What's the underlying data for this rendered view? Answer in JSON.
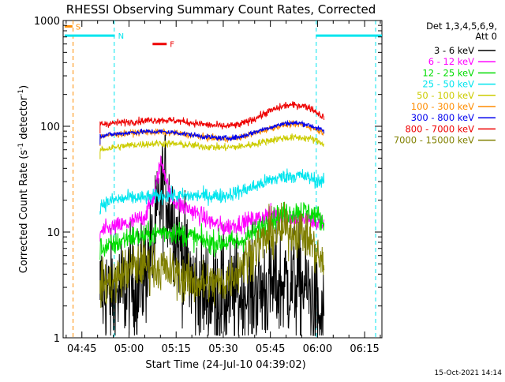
{
  "chart_data": {
    "type": "line",
    "title": "RHESSI Observing Summary Count Rates, Corrected",
    "xlabel": "Start Time (24-Jul-10 04:39:02)",
    "ylabel_prefix": "Corrected Count Rate (s",
    "ylabel_mid": " detector",
    "ylabel_sup": "-1",
    "ylabel_suffix": ")",
    "x_tick_labels": [
      "04:45",
      "05:00",
      "05:15",
      "05:30",
      "05:45",
      "06:00",
      "06:15"
    ],
    "x_tick_minutes": [
      45,
      60,
      75,
      90,
      105,
      120,
      135
    ],
    "xlim_minutes": [
      39.03,
      140.5
    ],
    "y_scale": "log",
    "ylim": [
      1,
      1000
    ],
    "y_tick_labels": [
      "1",
      "10",
      "100",
      "1000"
    ],
    "y_tick_values": [
      1,
      10,
      100,
      1000
    ],
    "legend": {
      "header": [
        "Det 1,3,4,5,6,9,",
        "Att 0"
      ],
      "placement": "right"
    },
    "footer_date": "15-Oct-2021 14:14",
    "flags": [
      {
        "label": "S",
        "color": "#ff8c00",
        "start": 39.5,
        "end": 42.0,
        "level": 880
      },
      {
        "label": "N",
        "color": "#00e5ee",
        "start": 39.5,
        "end": 55.5,
        "level": 720
      },
      {
        "label": "N",
        "color": "#00e5ee",
        "start": 119.5,
        "end": 140.5,
        "level": 720,
        "hide_label": true
      },
      {
        "label": "F",
        "color": "#ee0000",
        "start": 67.5,
        "end": 72.0,
        "level": 600
      }
    ],
    "event_lines": [
      {
        "minute": 42.2,
        "color": "#ff8c00"
      },
      {
        "minute": 55.3,
        "color": "#00e5ee"
      },
      {
        "minute": 119.6,
        "color": "#00e5ee"
      },
      {
        "minute": 138.5,
        "color": "#00e5ee"
      }
    ],
    "data_window_minutes": [
      50.8,
      122.2
    ],
    "series": [
      {
        "name": "3 - 6 keV",
        "color": "#000000",
        "noise": 0.55,
        "points": [
          [
            50.8,
            2.8
          ],
          [
            55,
            2.5
          ],
          [
            60,
            3
          ],
          [
            64,
            3.5
          ],
          [
            68,
            8
          ],
          [
            70,
            20
          ],
          [
            71.3,
            30
          ],
          [
            72.5,
            20
          ],
          [
            75,
            10
          ],
          [
            78,
            5
          ],
          [
            81,
            3
          ],
          [
            85,
            2.6
          ],
          [
            90,
            2.5
          ],
          [
            95,
            2.5
          ],
          [
            100,
            2.8
          ],
          [
            105,
            3
          ],
          [
            110,
            3.3
          ],
          [
            115,
            3.2
          ],
          [
            118,
            2.6
          ],
          [
            120,
            1.6
          ],
          [
            121.5,
            1.2
          ],
          [
            122.2,
            1.2
          ]
        ]
      },
      {
        "name": "6 - 12 keV",
        "color": "#ff00ff",
        "noise": 0.09,
        "points": [
          [
            50.8,
            10
          ],
          [
            55,
            11
          ],
          [
            60,
            12
          ],
          [
            65,
            14
          ],
          [
            68,
            22
          ],
          [
            70,
            45
          ],
          [
            71,
            42
          ],
          [
            73,
            22
          ],
          [
            76,
            18
          ],
          [
            80,
            16
          ],
          [
            85,
            13
          ],
          [
            90,
            11
          ],
          [
            95,
            12
          ],
          [
            100,
            13
          ],
          [
            105,
            15
          ],
          [
            110,
            14
          ],
          [
            115,
            13
          ],
          [
            118,
            13
          ],
          [
            120,
            12
          ],
          [
            122.2,
            12
          ]
        ]
      },
      {
        "name": "12 - 25 keV",
        "color": "#00dd00",
        "noise": 0.11,
        "points": [
          [
            50.8,
            7
          ],
          [
            55,
            7.5
          ],
          [
            60,
            9
          ],
          [
            65,
            9
          ],
          [
            70,
            10
          ],
          [
            75,
            10
          ],
          [
            80,
            9
          ],
          [
            85,
            8
          ],
          [
            90,
            8
          ],
          [
            95,
            8
          ],
          [
            100,
            10
          ],
          [
            105,
            13
          ],
          [
            110,
            15
          ],
          [
            115,
            16
          ],
          [
            118,
            15
          ],
          [
            120,
            14
          ],
          [
            122.2,
            12
          ]
        ]
      },
      {
        "name": "25 - 50 keV",
        "color": "#00e5ee",
        "noise": 0.07,
        "points": [
          [
            50.8,
            18
          ],
          [
            55,
            20
          ],
          [
            60,
            21
          ],
          [
            65,
            21
          ],
          [
            70,
            22
          ],
          [
            75,
            22
          ],
          [
            80,
            22
          ],
          [
            85,
            22
          ],
          [
            90,
            22
          ],
          [
            95,
            24
          ],
          [
            100,
            27
          ],
          [
            105,
            31
          ],
          [
            110,
            34
          ],
          [
            115,
            34
          ],
          [
            118,
            32
          ],
          [
            120,
            31
          ],
          [
            122.2,
            29
          ]
        ]
      },
      {
        "name": "50 - 100 keV",
        "color": "#cccc00",
        "noise": 0.035,
        "points": [
          [
            50.8,
            60
          ],
          [
            55,
            63
          ],
          [
            60,
            66
          ],
          [
            65,
            68
          ],
          [
            70,
            69
          ],
          [
            75,
            68
          ],
          [
            80,
            66
          ],
          [
            85,
            64
          ],
          [
            90,
            63
          ],
          [
            95,
            64
          ],
          [
            100,
            68
          ],
          [
            105,
            74
          ],
          [
            110,
            78
          ],
          [
            115,
            78
          ],
          [
            118,
            76
          ],
          [
            122.2,
            68
          ]
        ]
      },
      {
        "name": "100 - 300 keV",
        "color": "#ff8c00",
        "noise": 0.03,
        "points": [
          [
            50.8,
            80
          ],
          [
            55,
            83
          ],
          [
            60,
            86
          ],
          [
            65,
            88
          ],
          [
            70,
            88
          ],
          [
            75,
            86
          ],
          [
            80,
            82
          ],
          [
            85,
            78
          ],
          [
            90,
            76
          ],
          [
            95,
            78
          ],
          [
            100,
            86
          ],
          [
            105,
            96
          ],
          [
            110,
            104
          ],
          [
            115,
            104
          ],
          [
            118,
            98
          ],
          [
            122.2,
            86
          ]
        ]
      },
      {
        "name": "300 - 800 keV",
        "color": "#0000ee",
        "noise": 0.025,
        "points": [
          [
            50.8,
            82
          ],
          [
            55,
            84
          ],
          [
            60,
            87
          ],
          [
            65,
            89
          ],
          [
            70,
            89
          ],
          [
            75,
            87
          ],
          [
            80,
            83
          ],
          [
            85,
            79
          ],
          [
            90,
            77
          ],
          [
            95,
            79
          ],
          [
            100,
            88
          ],
          [
            105,
            98
          ],
          [
            110,
            107
          ],
          [
            115,
            107
          ],
          [
            118,
            101
          ],
          [
            122.2,
            90
          ]
        ]
      },
      {
        "name": "800 - 7000 keV",
        "color": "#ee0000",
        "noise": 0.035,
        "points": [
          [
            50.8,
            105
          ],
          [
            55,
            107
          ],
          [
            60,
            110
          ],
          [
            65,
            113
          ],
          [
            70,
            115
          ],
          [
            75,
            113
          ],
          [
            80,
            108
          ],
          [
            85,
            103
          ],
          [
            90,
            100
          ],
          [
            95,
            103
          ],
          [
            100,
            118
          ],
          [
            105,
            140
          ],
          [
            110,
            158
          ],
          [
            115,
            158
          ],
          [
            118,
            148
          ],
          [
            122.2,
            120
          ]
        ]
      },
      {
        "name": "7000 - 15000 keV",
        "color": "#808000",
        "noise": 0.22,
        "points": [
          [
            50.8,
            3.2
          ],
          [
            55,
            3.4
          ],
          [
            60,
            4.5
          ],
          [
            65,
            5
          ],
          [
            70,
            4.5
          ],
          [
            75,
            4.0
          ],
          [
            80,
            3.4
          ],
          [
            85,
            3.2
          ],
          [
            90,
            3.3
          ],
          [
            95,
            4.5
          ],
          [
            100,
            7
          ],
          [
            105,
            9.5
          ],
          [
            110,
            10.5
          ],
          [
            115,
            10
          ],
          [
            118,
            8
          ],
          [
            120,
            6
          ],
          [
            122.2,
            4.5
          ]
        ]
      }
    ]
  }
}
